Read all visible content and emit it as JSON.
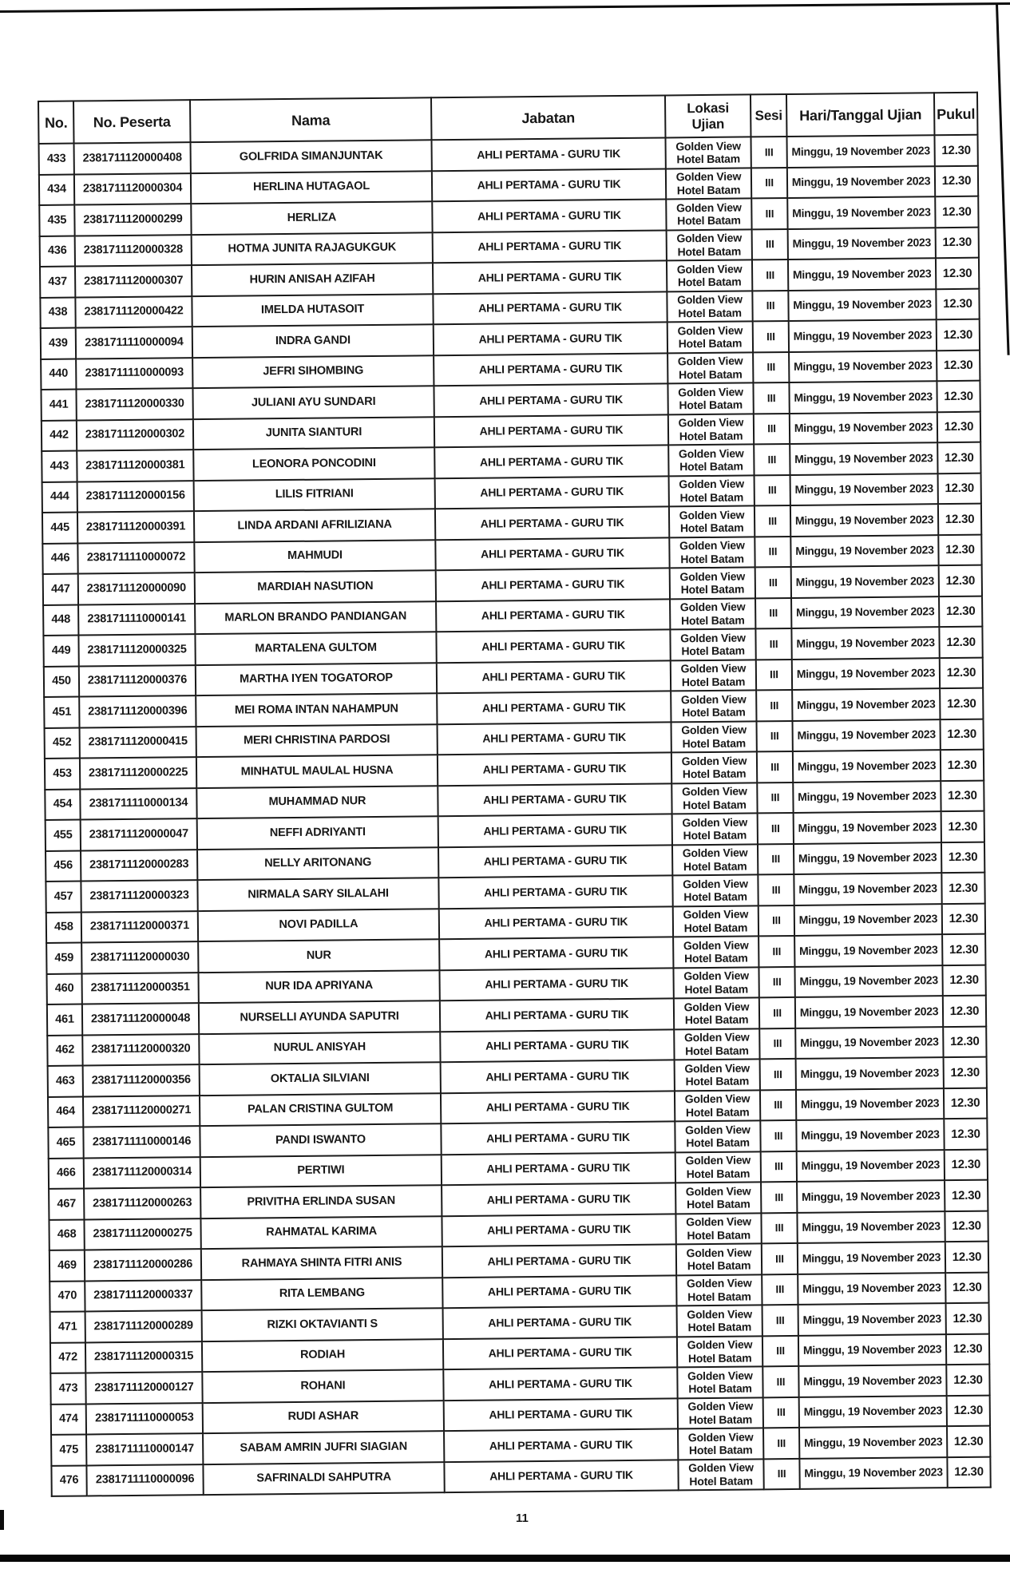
{
  "page": {
    "number": "11"
  },
  "table": {
    "headers": {
      "no": "No.",
      "no_peserta": "No. Peserta",
      "nama": "Nama",
      "jabatan": "Jabatan",
      "lokasi_line1": "Lokasi",
      "lokasi_line2": "Ujian",
      "sesi": "Sesi",
      "hari_tanggal": "Hari/Tanggal Ujian",
      "pukul": "Pukul"
    },
    "shared_row_values": {
      "jabatan": "AHLI PERTAMA - GURU TIK",
      "lokasi_ujian": [
        "Golden View",
        "Hotel Batam"
      ],
      "sesi": "III",
      "hari_tanggal": "Minggu, 19 November 2023",
      "pukul": "12.30"
    },
    "rows": [
      {
        "no": "433",
        "no_peserta": "2381711120000408",
        "nama": "GOLFRIDA SIMANJUNTAK"
      },
      {
        "no": "434",
        "no_peserta": "2381711120000304",
        "nama": "HERLINA HUTAGAOL"
      },
      {
        "no": "435",
        "no_peserta": "2381711120000299",
        "nama": "HERLIZA"
      },
      {
        "no": "436",
        "no_peserta": "2381711120000328",
        "nama": "HOTMA JUNITA RAJAGUKGUK"
      },
      {
        "no": "437",
        "no_peserta": "2381711120000307",
        "nama": "HURIN ANISAH AZIFAH"
      },
      {
        "no": "438",
        "no_peserta": "2381711120000422",
        "nama": "IMELDA HUTASOIT"
      },
      {
        "no": "439",
        "no_peserta": "2381711110000094",
        "nama": "INDRA GANDI"
      },
      {
        "no": "440",
        "no_peserta": "2381711110000093",
        "nama": "JEFRI SIHOMBING"
      },
      {
        "no": "441",
        "no_peserta": "2381711120000330",
        "nama": "JULIANI AYU SUNDARI"
      },
      {
        "no": "442",
        "no_peserta": "2381711120000302",
        "nama": "JUNITA SIANTURI"
      },
      {
        "no": "443",
        "no_peserta": "2381711120000381",
        "nama": "LEONORA PONCODINI"
      },
      {
        "no": "444",
        "no_peserta": "2381711120000156",
        "nama": "LILIS FITRIANI"
      },
      {
        "no": "445",
        "no_peserta": "2381711120000391",
        "nama": "LINDA ARDANI AFRILIZIANA"
      },
      {
        "no": "446",
        "no_peserta": "2381711110000072",
        "nama": "MAHMUDI"
      },
      {
        "no": "447",
        "no_peserta": "2381711120000090",
        "nama": "MARDIAH NASUTION"
      },
      {
        "no": "448",
        "no_peserta": "2381711110000141",
        "nama": "MARLON BRANDO PANDIANGAN"
      },
      {
        "no": "449",
        "no_peserta": "2381711120000325",
        "nama": "MARTALENA GULTOM"
      },
      {
        "no": "450",
        "no_peserta": "2381711120000376",
        "nama": "MARTHA IYEN TOGATOROP"
      },
      {
        "no": "451",
        "no_peserta": "2381711120000396",
        "nama": "MEI ROMA INTAN NAHAMPUN"
      },
      {
        "no": "452",
        "no_peserta": "2381711120000415",
        "nama": "MERI CHRISTINA PARDOSI"
      },
      {
        "no": "453",
        "no_peserta": "2381711120000225",
        "nama": "MINHATUL MAULAL HUSNA"
      },
      {
        "no": "454",
        "no_peserta": "2381711110000134",
        "nama": "MUHAMMAD NUR"
      },
      {
        "no": "455",
        "no_peserta": "2381711120000047",
        "nama": "NEFFI ADRIYANTI"
      },
      {
        "no": "456",
        "no_peserta": "2381711120000283",
        "nama": "NELLY ARITONANG"
      },
      {
        "no": "457",
        "no_peserta": "2381711120000323",
        "nama": "NIRMALA SARY SILALAHI"
      },
      {
        "no": "458",
        "no_peserta": "2381711120000371",
        "nama": "NOVI PADILLA"
      },
      {
        "no": "459",
        "no_peserta": "2381711120000030",
        "nama": "NUR"
      },
      {
        "no": "460",
        "no_peserta": "2381711120000351",
        "nama": "NUR IDA APRIYANA"
      },
      {
        "no": "461",
        "no_peserta": "2381711120000048",
        "nama": "NURSELLI AYUNDA SAPUTRI"
      },
      {
        "no": "462",
        "no_peserta": "2381711120000320",
        "nama": "NURUL ANISYAH"
      },
      {
        "no": "463",
        "no_peserta": "2381711120000356",
        "nama": "OKTALIA SILVIANI"
      },
      {
        "no": "464",
        "no_peserta": "2381711120000271",
        "nama": "PALAN CRISTINA GULTOM"
      },
      {
        "no": "465",
        "no_peserta": "2381711110000146",
        "nama": "PANDI ISWANTO"
      },
      {
        "no": "466",
        "no_peserta": "2381711120000314",
        "nama": "PERTIWI"
      },
      {
        "no": "467",
        "no_peserta": "2381711120000263",
        "nama": "PRIVITHA ERLINDA SUSAN"
      },
      {
        "no": "468",
        "no_peserta": "2381711120000275",
        "nama": "RAHMATAL KARIMA"
      },
      {
        "no": "469",
        "no_peserta": "2381711120000286",
        "nama": "RAHMAYA SHINTA FITRI ANIS"
      },
      {
        "no": "470",
        "no_peserta": "2381711120000337",
        "nama": "RITA LEMBANG"
      },
      {
        "no": "471",
        "no_peserta": "2381711120000289",
        "nama": "RIZKI OKTAVIANTI S"
      },
      {
        "no": "472",
        "no_peserta": "2381711120000315",
        "nama": "RODIAH"
      },
      {
        "no": "473",
        "no_peserta": "2381711120000127",
        "nama": "ROHANI"
      },
      {
        "no": "474",
        "no_peserta": "2381711110000053",
        "nama": "RUDI ASHAR"
      },
      {
        "no": "475",
        "no_peserta": "2381711110000147",
        "nama": "SABAM AMRIN JUFRI SIAGIAN"
      },
      {
        "no": "476",
        "no_peserta": "2381711110000096",
        "nama": "SAFRINALDI SAHPUTRA"
      }
    ]
  }
}
